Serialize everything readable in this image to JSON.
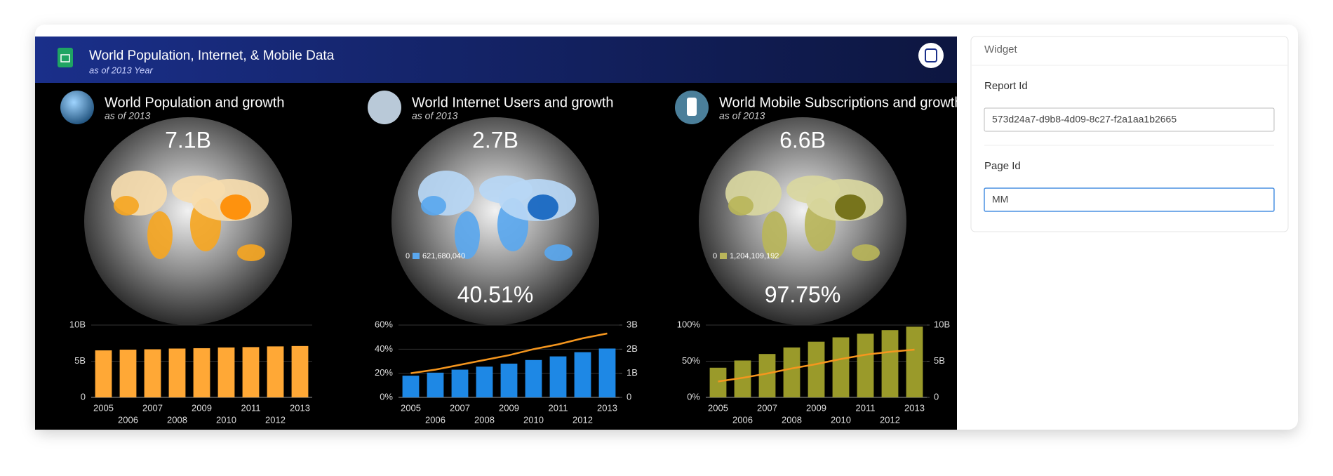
{
  "header": {
    "title": "World Population, Internet, & Mobile Data",
    "subtitle": "as of 2013 Year"
  },
  "panels": [
    {
      "title": "World Population and growth",
      "subtitle": "as of 2013",
      "headline": "7.1B"
    },
    {
      "title": "World Internet Users and growth",
      "subtitle": "as of 2013",
      "headline": "2.7B",
      "percent": "40.51%",
      "legend": [
        "0",
        "621,680,040"
      ]
    },
    {
      "title": "World Mobile Subscriptions and growth",
      "subtitle": "as of 2013",
      "headline": "6.6B",
      "percent": "97.75%",
      "legend": [
        "0",
        "1,204,109,192"
      ]
    }
  ],
  "chart_data": [
    {
      "type": "bar",
      "categories": [
        "2005",
        "2006",
        "2007",
        "2008",
        "2009",
        "2010",
        "2011",
        "2012",
        "2013"
      ],
      "series": [
        {
          "type": "bar",
          "color": "#ffa836",
          "values": [
            6500000000,
            6600000000,
            6650000000,
            6750000000,
            6800000000,
            6900000000,
            6950000000,
            7050000000,
            7100000000
          ]
        }
      ],
      "ylim": [
        0,
        10000000000
      ],
      "yticks": [
        0,
        {
          "value": 5000000000,
          "label": "5B"
        },
        {
          "value": 10000000000,
          "label": "10B"
        }
      ],
      "grid": true
    },
    {
      "type": "combo",
      "categories": [
        "2005",
        "2006",
        "2007",
        "2008",
        "2009",
        "2010",
        "2011",
        "2012",
        "2013"
      ],
      "series": [
        {
          "type": "bar",
          "color": "#1e88e5",
          "values": [
            18,
            20.5,
            23,
            25.5,
            28,
            31,
            34,
            37.5,
            40.51
          ]
        },
        {
          "type": "line",
          "axis": "y2",
          "color": "#f5961e",
          "values": [
            1000000000,
            1150000000,
            1350000000,
            1550000000,
            1750000000,
            2000000000,
            2200000000,
            2450000000,
            2650000000
          ]
        }
      ],
      "ylim": [
        0,
        60
      ],
      "yticks": [
        {
          "value": 0,
          "label": "0%"
        },
        {
          "value": 20,
          "label": "20%"
        },
        {
          "value": 40,
          "label": "40%"
        },
        {
          "value": 60,
          "label": "60%"
        }
      ],
      "y2lim": [
        0,
        3000000000
      ],
      "y2ticks": [
        0,
        {
          "value": 1000000000,
          "label": "1B"
        },
        {
          "value": 2000000000,
          "label": "2B"
        },
        {
          "value": 3000000000,
          "label": "3B"
        }
      ],
      "grid": true
    },
    {
      "type": "combo",
      "categories": [
        "2005",
        "2006",
        "2007",
        "2008",
        "2009",
        "2010",
        "2011",
        "2012",
        "2013"
      ],
      "series": [
        {
          "type": "bar",
          "color": "#9a9a2a",
          "values": [
            41,
            51,
            60,
            69,
            77,
            83,
            88,
            93,
            97.75
          ]
        },
        {
          "type": "line",
          "axis": "y2",
          "color": "#f5961e",
          "values": [
            2200000000,
            2700000000,
            3300000000,
            4000000000,
            4600000000,
            5300000000,
            5900000000,
            6300000000,
            6600000000
          ]
        }
      ],
      "ylim": [
        0,
        100
      ],
      "yticks": [
        {
          "value": 0,
          "label": "0%"
        },
        {
          "value": 50,
          "label": "50%"
        },
        {
          "value": 100,
          "label": "100%"
        }
      ],
      "y2lim": [
        0,
        10000000000
      ],
      "y2ticks": [
        0,
        {
          "value": 5000000000,
          "label": "5B"
        },
        {
          "value": 10000000000,
          "label": "10B"
        }
      ],
      "grid": true
    }
  ],
  "widget": {
    "title": "Widget",
    "fields": [
      {
        "label": "Report Id",
        "value": "573d24a7-d9b8-4d09-8c27-f2a1aa1b2665"
      },
      {
        "label": "Page Id",
        "value": "MM"
      }
    ]
  }
}
